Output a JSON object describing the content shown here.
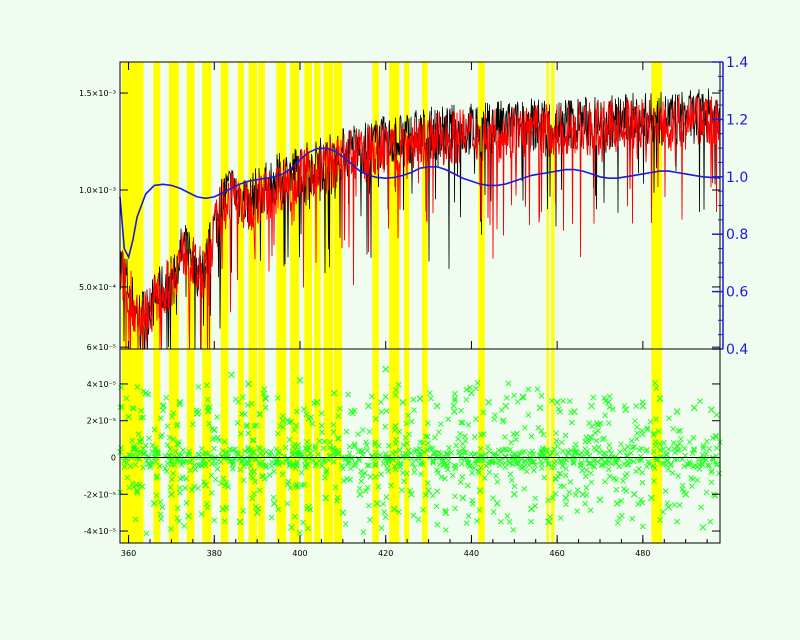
{
  "chart_data": [
    {
      "type": "line",
      "panel": "top",
      "title": "",
      "xlabel": "",
      "ylabel": "",
      "xlim": [
        358,
        498
      ],
      "ylim_left": [
        0.00018,
        0.00166
      ],
      "ylim_right": [
        0.4,
        1.4
      ],
      "x_ticks": [
        360,
        380,
        400,
        420,
        440,
        460,
        480
      ],
      "x_tick_labels": [
        "360",
        "380",
        "400",
        "420",
        "440",
        "460",
        "480"
      ],
      "y_ticks_left": [
        0.0005,
        0.001,
        0.0015
      ],
      "y_tick_labels_left": [
        "5.0×10⁻⁴",
        "1.0×10⁻³",
        "1.5×10⁻³"
      ],
      "y_ticks_right": [
        0.4,
        0.6,
        0.8,
        1.0,
        1.2,
        1.4
      ],
      "y_tick_labels_right": [
        "0.4",
        "0.6",
        "0.8",
        "1.0",
        "1.2",
        "1.4"
      ],
      "masked_regions": [
        [
          358.4,
          363.5
        ],
        [
          365.8,
          367.4
        ],
        [
          369.4,
          371.7
        ],
        [
          373.6,
          375.4
        ],
        [
          377.2,
          379.3
        ],
        [
          381.5,
          383.3
        ],
        [
          385.5,
          386.9
        ],
        [
          388.0,
          390.0
        ],
        [
          390.3,
          391.8
        ],
        [
          394.5,
          396.8
        ],
        [
          397.7,
          399.8
        ],
        [
          401.0,
          402.8
        ],
        [
          403.3,
          404.8
        ],
        [
          405.5,
          407.7
        ],
        [
          407.9,
          409.8
        ],
        [
          416.9,
          418.4
        ],
        [
          420.8,
          423.2
        ],
        [
          424.3,
          425.5
        ],
        [
          428.5,
          429.8
        ],
        [
          441.6,
          443.1
        ],
        [
          457.5,
          458.1
        ],
        [
          458.6,
          459.4
        ],
        [
          482.0,
          484.5
        ]
      ],
      "series": [
        {
          "name": "",
          "color": "#000000",
          "x": [
            358,
            360,
            362,
            364,
            366,
            368,
            370,
            372,
            374,
            376,
            378,
            380,
            382,
            384,
            386,
            388,
            390,
            392,
            394,
            396,
            398,
            400,
            402,
            404,
            406,
            408,
            410,
            412,
            414,
            416,
            418,
            420,
            422,
            424,
            426,
            428,
            430,
            432,
            434,
            436,
            438,
            440,
            442,
            444,
            446,
            448,
            450,
            452,
            454,
            456,
            458,
            460,
            462,
            464,
            466,
            468,
            470,
            472,
            474,
            476,
            478,
            480,
            482,
            484,
            486,
            488,
            490,
            492,
            494,
            496,
            498
          ],
          "y": [
            0.00065,
            0.00052,
            0.00036,
            0.00038,
            0.00045,
            0.0005,
            0.00055,
            0.00068,
            0.00072,
            0.0006,
            0.00062,
            0.00082,
            0.00098,
            0.00102,
            0.00098,
            0.00095,
            0.001,
            0.00102,
            0.00105,
            0.00108,
            0.0011,
            0.00112,
            0.00113,
            0.00115,
            0.00116,
            0.00118,
            0.0012,
            0.00122,
            0.00123,
            0.00124,
            0.00125,
            0.00126,
            0.00127,
            0.00128,
            0.00129,
            0.0013,
            0.0013,
            0.00131,
            0.00131,
            0.00132,
            0.00132,
            0.00133,
            0.00133,
            0.00133,
            0.00134,
            0.00134,
            0.00134,
            0.00134,
            0.00135,
            0.00135,
            0.00135,
            0.00135,
            0.00136,
            0.00136,
            0.00136,
            0.00136,
            0.00136,
            0.00137,
            0.00137,
            0.00137,
            0.00138,
            0.00138,
            0.00138,
            0.00138,
            0.00138,
            0.00139,
            0.00139,
            0.00139,
            0.0014,
            0.0014,
            0.0014
          ]
        },
        {
          "name": "",
          "color": "#ff0000",
          "x": [
            358,
            360,
            362,
            364,
            366,
            368,
            370,
            372,
            374,
            376,
            378,
            380,
            382,
            384,
            386,
            388,
            390,
            392,
            394,
            396,
            398,
            400,
            402,
            404,
            406,
            408,
            410,
            412,
            414,
            416,
            418,
            420,
            422,
            424,
            426,
            428,
            430,
            432,
            434,
            436,
            438,
            440,
            442,
            444,
            446,
            448,
            450,
            452,
            454,
            456,
            458,
            460,
            462,
            464,
            466,
            468,
            470,
            472,
            474,
            476,
            478,
            480,
            482,
            484,
            486,
            488,
            490,
            492,
            494,
            496,
            498
          ],
          "y": [
            0.0006,
            0.0005,
            0.00035,
            0.00037,
            0.00044,
            0.00049,
            0.00054,
            0.00066,
            0.0007,
            0.00058,
            0.0006,
            0.0008,
            0.00095,
            0.00099,
            0.00095,
            0.00092,
            0.00097,
            0.00099,
            0.00102,
            0.00105,
            0.00107,
            0.00109,
            0.0011,
            0.00112,
            0.00113,
            0.00115,
            0.00117,
            0.00119,
            0.0012,
            0.00121,
            0.00122,
            0.00123,
            0.00124,
            0.00125,
            0.00126,
            0.00127,
            0.00127,
            0.00128,
            0.00128,
            0.00129,
            0.00129,
            0.0013,
            0.0013,
            0.0013,
            0.00131,
            0.00131,
            0.00131,
            0.00131,
            0.00132,
            0.00132,
            0.00132,
            0.00132,
            0.00133,
            0.00133,
            0.00133,
            0.00133,
            0.00133,
            0.00134,
            0.00134,
            0.00134,
            0.00135,
            0.00135,
            0.00135,
            0.00135,
            0.00135,
            0.00136,
            0.00136,
            0.00136,
            0.00137,
            0.00137,
            0.00137
          ]
        },
        {
          "name": "",
          "color": "#1b1bd9",
          "axis": "right",
          "x": [
            358,
            359,
            360,
            361,
            362,
            364,
            366,
            368,
            370,
            372,
            374,
            376,
            378,
            380,
            382,
            384,
            386,
            388,
            390,
            392,
            394,
            396,
            398,
            400,
            402,
            404,
            406,
            408,
            410,
            412,
            414,
            416,
            418,
            420,
            422,
            424,
            426,
            428,
            430,
            432,
            434,
            436,
            438,
            440,
            442,
            444,
            446,
            448,
            450,
            452,
            454,
            456,
            458,
            460,
            462,
            464,
            466,
            468,
            470,
            472,
            474,
            476,
            478,
            480,
            482,
            484,
            486,
            488,
            490,
            492,
            494,
            496,
            498
          ],
          "y": [
            0.93,
            0.75,
            0.72,
            0.78,
            0.86,
            0.94,
            0.97,
            0.974,
            0.97,
            0.96,
            0.945,
            0.93,
            0.925,
            0.93,
            0.945,
            0.96,
            0.975,
            0.985,
            0.99,
            0.995,
            1.0,
            1.01,
            1.03,
            1.06,
            1.085,
            1.098,
            1.1,
            1.09,
            1.07,
            1.045,
            1.02,
            1.005,
            0.998,
            0.995,
            0.998,
            1.005,
            1.015,
            1.03,
            1.035,
            1.035,
            1.025,
            1.01,
            0.995,
            0.985,
            0.975,
            0.97,
            0.97,
            0.975,
            0.985,
            0.995,
            1.005,
            1.01,
            1.015,
            1.02,
            1.025,
            1.025,
            1.02,
            1.01,
            1.0,
            0.995,
            0.995,
            1.0,
            1.005,
            1.01,
            1.015,
            1.02,
            1.02,
            1.015,
            1.01,
            1.005,
            1.0,
            0.998,
            0.996
          ]
        }
      ]
    },
    {
      "type": "scatter",
      "panel": "bottom",
      "title": "",
      "xlabel": "",
      "ylabel": "",
      "xlim": [
        358,
        498
      ],
      "ylim": [
        -4.65e-05,
        5.9e-05
      ],
      "x_ticks": [
        360,
        380,
        400,
        420,
        440,
        460,
        480
      ],
      "x_tick_labels": [
        "360",
        "380",
        "400",
        "420",
        "440",
        "460",
        "480"
      ],
      "y_ticks": [
        -4e-05,
        -2e-05,
        0,
        2e-05,
        4e-05,
        6e-05
      ],
      "y_tick_labels": [
        "-4×10⁻⁵",
        "-2×10⁻⁵",
        "0",
        "2×10⁻⁵",
        "4×10⁻⁵",
        "6×10⁻⁵"
      ],
      "zero_line": true,
      "series": [
        {
          "name": "",
          "color": "#22ff22",
          "marker": "x",
          "x": [
            360,
            362,
            364,
            366,
            368,
            370,
            372,
            374,
            376,
            378,
            380,
            382,
            384,
            386,
            388,
            390,
            392,
            394,
            396,
            398,
            400,
            402,
            404,
            406,
            408,
            410,
            412,
            414,
            416,
            418,
            420,
            422,
            424,
            426,
            428,
            430,
            432,
            434,
            436,
            438,
            440,
            442,
            444,
            446,
            448,
            450,
            452,
            454,
            456,
            458,
            460,
            462,
            464,
            466,
            468,
            470,
            472,
            474,
            476,
            478,
            480,
            482,
            484,
            486,
            488,
            490,
            492,
            494,
            496
          ],
          "y": [
            2.2e-05,
            -1.8e-05,
            3.5e-05,
            -2.5e-05,
            2.8e-05,
            -2e-05,
            3e-05,
            -3.2e-05,
            2.4e-05,
            -1.5e-05,
            1.5e-05,
            -2.8e-05,
            4.5e-05,
            -3.5e-05,
            4e-05,
            -3e-05,
            3.2e-05,
            -2.5e-05,
            2e-05,
            -3.8e-05,
            4.2e-05,
            -2.7e-05,
            3e-05,
            -2.2e-05,
            3.5e-05,
            -3e-05,
            2.5e-05,
            -2e-05,
            2.8e-05,
            -2.5e-05,
            4.8e-05,
            -2.8e-05,
            3e-05,
            -2e-05,
            3.2e-05,
            -1.8e-05,
            2.8e-05,
            -3e-05,
            2.5e-05,
            -2.2e-05,
            3.5e-05,
            -1.8e-05,
            3e-05,
            -2.5e-05,
            2.8e-05,
            -2e-05,
            3.3e-05,
            -2.8e-05,
            2.7e-05,
            -3.5e-05,
            3e-05,
            -2.2e-05,
            2.5e-05,
            -2e-05,
            2.8e-05,
            -2.3e-05,
            3e-05,
            -2.5e-05,
            2.6e-05,
            -2e-05,
            2.8e-05,
            -2.2e-05,
            3.2e-05,
            -2.7e-05,
            2.5e-05,
            -2e-05,
            2.7e-05,
            -3.8e-05,
            2.6e-05
          ]
        }
      ]
    }
  ]
}
